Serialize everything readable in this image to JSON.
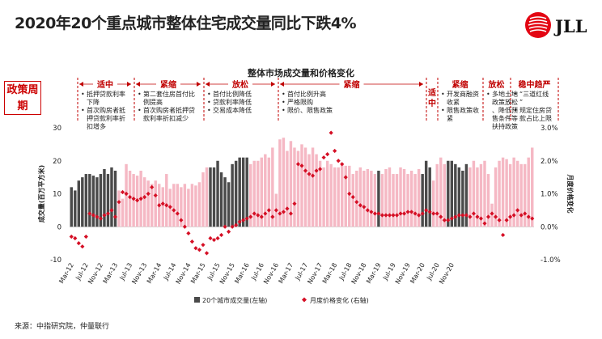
{
  "title": "2020年20个重点城市整体住宅成交量同比下跌4%",
  "logo": {
    "text": "JLL",
    "color": "#e30613"
  },
  "chart_title": "整体市场成交量和价格变化",
  "policy": {
    "box_label": "政策周期",
    "periods": [
      {
        "name": "适中",
        "bullets": [
          "抵押贷款利率下降",
          "首次购房者抵押贷款利率折扣增多"
        ]
      },
      {
        "name": "紧缩",
        "bullets": [
          "第二套住房首付比例提高",
          "首次购房者抵押贷款利率折扣减少"
        ]
      },
      {
        "name": "放松",
        "bullets": [
          "首付比例降低",
          "贷款利率降低",
          "交易成本降低"
        ]
      },
      {
        "name": "紧缩",
        "bullets": [
          "首付比例升高",
          "严格限购",
          "限价、限售政策"
        ]
      },
      {
        "name": "适中",
        "bullets": []
      },
      {
        "name": "紧缩",
        "bullets": [
          "开发商融资收紧",
          "限售政策收紧"
        ]
      },
      {
        "name": "放松",
        "bullets": [
          "多地土地政策放松、降低预售条件等扶持政策"
        ]
      },
      {
        "name": "稳中趋严",
        "bullets": [
          "“三道红线”",
          "规定住房贷款占比上限"
        ]
      }
    ]
  },
  "colors": {
    "dark_bar": "#4a4a4a",
    "light_bar": "#f5b8c4",
    "price": "#d50f25",
    "policy": "#c00000"
  },
  "source": "来源：中指研究院，仲量联行",
  "chart_data": {
    "type": "bar",
    "xlabel": "",
    "ylabel": "成交量(百万平方米)",
    "y2label": "月度价格变化",
    "ylim": [
      -10,
      30
    ],
    "yticks": [
      -10,
      0,
      10,
      20,
      30
    ],
    "y2lim": [
      -1.0,
      3.0
    ],
    "y2ticks": [
      "-1.0%",
      "0.0%",
      "1.0%",
      "2.0%",
      "3.0%"
    ],
    "tick_labels": [
      "Mar-12",
      "Jul-12",
      "Nov-12",
      "Mar-13",
      "Jul-13",
      "Nov-13",
      "Mar-14",
      "Jul-14",
      "Nov-14",
      "Mar-15",
      "Jul-15",
      "Nov-15",
      "Mar-16",
      "Jul-16",
      "Nov-16",
      "Mar-17",
      "Jul-17",
      "Nov-17",
      "Mar-18",
      "Jul-18",
      "Nov-18",
      "Mar-19",
      "Jul-19",
      "Nov-19",
      "Mar-20",
      "Jul-20",
      "Nov-20"
    ],
    "legend": [
      "20个城市成交量(左轴)",
      "月度价格变化 (右轴)"
    ],
    "legend_position": "bottom",
    "start_month": "2012-03",
    "series": [
      {
        "name": "20个城市成交量(左轴)",
        "type": "bar",
        "values": [
          12,
          11,
          14,
          15,
          16,
          16,
          15.5,
          15,
          16,
          17.5,
          16,
          18,
          17,
          11,
          8.5,
          19,
          17,
          16,
          15.5,
          17,
          15,
          14,
          13,
          14,
          13,
          12,
          16,
          11.5,
          13,
          13,
          12,
          13,
          11.5,
          13,
          12.5,
          13.5,
          16.5,
          18,
          18,
          18,
          20,
          16.5,
          15,
          13.5,
          19,
          20,
          21,
          21,
          21,
          19,
          20,
          20,
          21,
          22,
          21,
          24,
          10,
          26.5,
          27,
          23,
          26,
          24,
          23,
          25,
          24,
          22,
          24,
          22,
          20,
          18,
          20,
          19,
          18,
          18,
          19,
          18.5,
          18.5,
          16,
          17,
          18,
          17,
          17.5,
          17,
          16,
          17,
          16,
          17.5,
          18,
          16,
          16,
          18,
          17.5,
          16,
          17,
          16,
          17.5,
          16,
          20,
          18,
          14,
          19,
          21,
          19,
          20,
          20,
          19,
          18,
          17,
          19,
          18,
          20,
          18,
          19,
          20,
          16,
          7,
          18,
          20,
          21,
          20.5,
          19,
          21,
          20,
          19,
          19,
          21,
          24
        ]
      },
      {
        "name": "月度价格变化 (右轴)",
        "type": "scatter",
        "values": [
          -0.3,
          -0.35,
          -0.5,
          -0.6,
          -0.3,
          0.4,
          0.35,
          0.3,
          0.25,
          0.35,
          0.4,
          0.5,
          0.3,
          0.75,
          1.05,
          1.0,
          0.9,
          0.85,
          0.8,
          0.85,
          0.9,
          1.0,
          1.2,
          0.95,
          0.65,
          0.7,
          0.65,
          0.6,
          0.5,
          0.4,
          0.2,
          0.0,
          -0.2,
          -0.45,
          -0.65,
          -0.7,
          -0.55,
          -0.8,
          -0.35,
          -0.4,
          -0.35,
          -0.25,
          0.0,
          -0.15,
          0.0,
          0.05,
          0.15,
          0.2,
          0.25,
          0.3,
          0.4,
          0.35,
          0.3,
          0.4,
          0.5,
          0.3,
          0.5,
          0.4,
          0.45,
          0.55,
          0.4,
          0.7,
          1.9,
          1.85,
          1.7,
          1.6,
          1.55,
          1.7,
          1.75,
          2.1,
          2.2,
          2.85,
          2.3,
          2.0,
          1.9,
          1.5,
          1.0,
          0.9,
          0.75,
          0.65,
          0.6,
          0.5,
          0.45,
          0.4,
          0.4,
          0.35,
          0.35,
          0.35,
          0.35,
          0.35,
          0.4,
          0.4,
          0.45,
          0.45,
          0.4,
          0.35,
          0.4,
          0.5,
          0.45,
          0.4,
          0.4,
          0.3,
          0.2,
          0.2,
          0.25,
          0.3,
          0.35,
          0.35,
          0.35,
          0.3,
          0.4,
          0.3,
          0.25,
          0.1,
          0.3,
          0.4,
          0.3,
          0.2,
          -0.25,
          0.2,
          0.3,
          0.35,
          0.5,
          0.35,
          0.4,
          0.3,
          0.25
        ]
      }
    ]
  }
}
